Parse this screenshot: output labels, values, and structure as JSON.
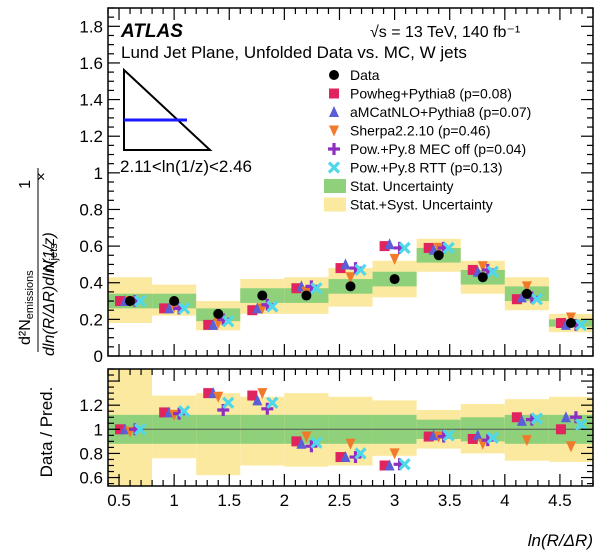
{
  "chart_data": {
    "type": "scatter",
    "experiment": "ATLAS",
    "energy_label": "√s = 13 TeV, 140 fb⁻¹",
    "title": "Lund Jet Plane, Unfolded Data vs. MC, W jets",
    "inset_label": "2.11<ln(1/z)<2.46",
    "ylabel_main": "1/N_jets × d²N_emissions / dln(R/ΔR)dln(1/z)",
    "ylabel_main_parts": {
      "prefix": "1",
      "njets": "N",
      "njets_sub": "jets",
      "times": "×",
      "num": "d²N",
      "num_sub": "emissions",
      "den": "dln(R/ΔR)dln(1/z)"
    },
    "ylabel_ratio": "Data / Pred.",
    "xlabel": "ln(R/ΔR)",
    "xlim": [
      0.4,
      4.8
    ],
    "ylim_main": [
      0,
      1.9
    ],
    "ylim_ratio": [
      0.53,
      1.5
    ],
    "x_ticks": [
      0.5,
      1,
      1.5,
      2,
      2.5,
      3,
      3.5,
      4,
      4.5
    ],
    "x_tick_labels": [
      "0.5",
      "1",
      "1.5",
      "2",
      "2.5",
      "3",
      "3.5",
      "4",
      "4.5"
    ],
    "y_ticks_main": [
      0,
      0.2,
      0.4,
      0.6,
      0.8,
      1,
      1.2,
      1.4,
      1.6,
      1.8
    ],
    "y_tick_labels_main": [
      "0",
      "0.2",
      "0.4",
      "0.6",
      "0.8",
      "1",
      "1.2",
      "1.4",
      "1.6",
      "1.8"
    ],
    "y_ticks_ratio": [
      0.6,
      0.8,
      1.0,
      1.2
    ],
    "y_tick_labels_ratio": [
      "0.6",
      "0.8",
      "1",
      "1.2"
    ],
    "bin_edges": [
      0.4,
      0.8,
      1.2,
      1.6,
      2.0,
      2.4,
      2.8,
      3.2,
      3.6,
      4.0,
      4.4,
      4.8
    ],
    "legend_position": "top-right",
    "legend": [
      {
        "label": "Data",
        "marker": "circle",
        "color": "#000000"
      },
      {
        "label": "Powheg+Pythia8 (p=0.08)",
        "marker": "square",
        "color": "#e0245e"
      },
      {
        "label": "aMCatNLO+Pythia8 (p=0.07)",
        "marker": "triangle-up",
        "color": "#5a5fd6"
      },
      {
        "label": "Sherpa2.2.10 (p=0.46)",
        "marker": "triangle-down",
        "color": "#f07a2a"
      },
      {
        "label": "Pow.+Py.8 MEC off (p=0.04)",
        "marker": "plus",
        "color": "#8e2fc0"
      },
      {
        "label": "Pow.+Py.8 RTT (p=0.13)",
        "marker": "cross",
        "color": "#4fd7ea"
      },
      {
        "label": "Stat. Uncertainty",
        "marker": "box",
        "color": "#8fd17a"
      },
      {
        "label": "Stat.+Syst. Uncertainty",
        "marker": "box",
        "color": "#fbe9a0"
      }
    ],
    "data": {
      "x": [
        0.6,
        1.0,
        1.4,
        1.8,
        2.2,
        2.6,
        3.0,
        3.4,
        3.8,
        4.2,
        4.6
      ],
      "y": [
        0.3,
        0.3,
        0.23,
        0.33,
        0.33,
        0.38,
        0.42,
        0.55,
        0.43,
        0.34,
        0.18
      ]
    },
    "stat_band": {
      "lo": [
        0.26,
        0.26,
        0.19,
        0.29,
        0.29,
        0.34,
        0.38,
        0.51,
        0.39,
        0.3,
        0.16
      ],
      "hi": [
        0.34,
        0.34,
        0.26,
        0.37,
        0.37,
        0.42,
        0.46,
        0.59,
        0.47,
        0.38,
        0.2
      ]
    },
    "syst_band": {
      "lo": [
        0.18,
        0.22,
        0.14,
        0.23,
        0.23,
        0.27,
        0.32,
        0.46,
        0.34,
        0.25,
        0.13
      ],
      "hi": [
        0.43,
        0.39,
        0.3,
        0.42,
        0.43,
        0.48,
        0.52,
        0.64,
        0.52,
        0.43,
        0.23
      ]
    },
    "predictions": [
      {
        "name": "Powheg+Pythia8",
        "y": [
          0.3,
          0.26,
          0.17,
          0.25,
          0.37,
          0.48,
          0.6,
          0.59,
          0.47,
          0.31,
          0.18
        ]
      },
      {
        "name": "aMCatNLO+Pythia8",
        "y": [
          0.3,
          0.26,
          0.17,
          0.26,
          0.38,
          0.5,
          0.61,
          0.58,
          0.46,
          0.32,
          0.17
        ]
      },
      {
        "name": "Sherpa2.2.10",
        "y": [
          0.3,
          0.27,
          0.18,
          0.26,
          0.35,
          0.43,
          0.53,
          0.59,
          0.49,
          0.38,
          0.21
        ]
      },
      {
        "name": "Pow.+Py.8 MEC off",
        "y": [
          0.3,
          0.26,
          0.2,
          0.28,
          0.38,
          0.48,
          0.59,
          0.59,
          0.47,
          0.32,
          0.17
        ]
      },
      {
        "name": "Pow.+Py.8 RTT",
        "y": [
          0.3,
          0.26,
          0.19,
          0.27,
          0.37,
          0.47,
          0.59,
          0.59,
          0.46,
          0.31,
          0.17
        ]
      }
    ],
    "ratio": {
      "stat_band": {
        "lo": [
          0.88,
          0.88,
          0.88,
          0.88,
          0.88,
          0.88,
          0.88,
          0.92,
          0.9,
          0.88,
          0.88
        ],
        "hi": [
          1.12,
          1.12,
          1.12,
          1.12,
          1.12,
          1.12,
          1.12,
          1.08,
          1.1,
          1.12,
          1.12
        ]
      },
      "syst_band": {
        "lo": [
          0.53,
          0.76,
          0.62,
          0.7,
          0.69,
          0.7,
          0.78,
          0.84,
          0.8,
          0.74,
          0.73
        ],
        "hi": [
          1.5,
          1.28,
          1.3,
          1.27,
          1.3,
          1.27,
          1.24,
          1.16,
          1.21,
          1.25,
          1.27
        ]
      },
      "predictions": [
        {
          "name": "Powheg+Pythia8",
          "y": [
            1.0,
            1.14,
            1.3,
            1.28,
            0.9,
            0.77,
            0.7,
            0.94,
            0.92,
            1.1,
            1.0
          ]
        },
        {
          "name": "aMCatNLO+Pythia8",
          "y": [
            1.0,
            1.14,
            1.3,
            1.24,
            0.88,
            0.77,
            0.7,
            0.95,
            0.95,
            1.07,
            1.1
          ]
        },
        {
          "name": "Sherpa2.2.10",
          "y": [
            0.98,
            1.12,
            1.27,
            1.3,
            0.94,
            0.88,
            0.8,
            0.94,
            0.88,
            0.91,
            0.86
          ]
        },
        {
          "name": "Pow.+Py.8 MEC off",
          "y": [
            1.0,
            1.13,
            1.16,
            1.17,
            0.86,
            0.77,
            0.71,
            0.94,
            0.91,
            1.08,
            1.1
          ]
        },
        {
          "name": "Pow.+Py.8 RTT",
          "y": [
            1.0,
            1.15,
            1.22,
            1.22,
            0.89,
            0.8,
            0.71,
            0.95,
            0.93,
            1.09,
            1.04
          ]
        }
      ]
    }
  }
}
